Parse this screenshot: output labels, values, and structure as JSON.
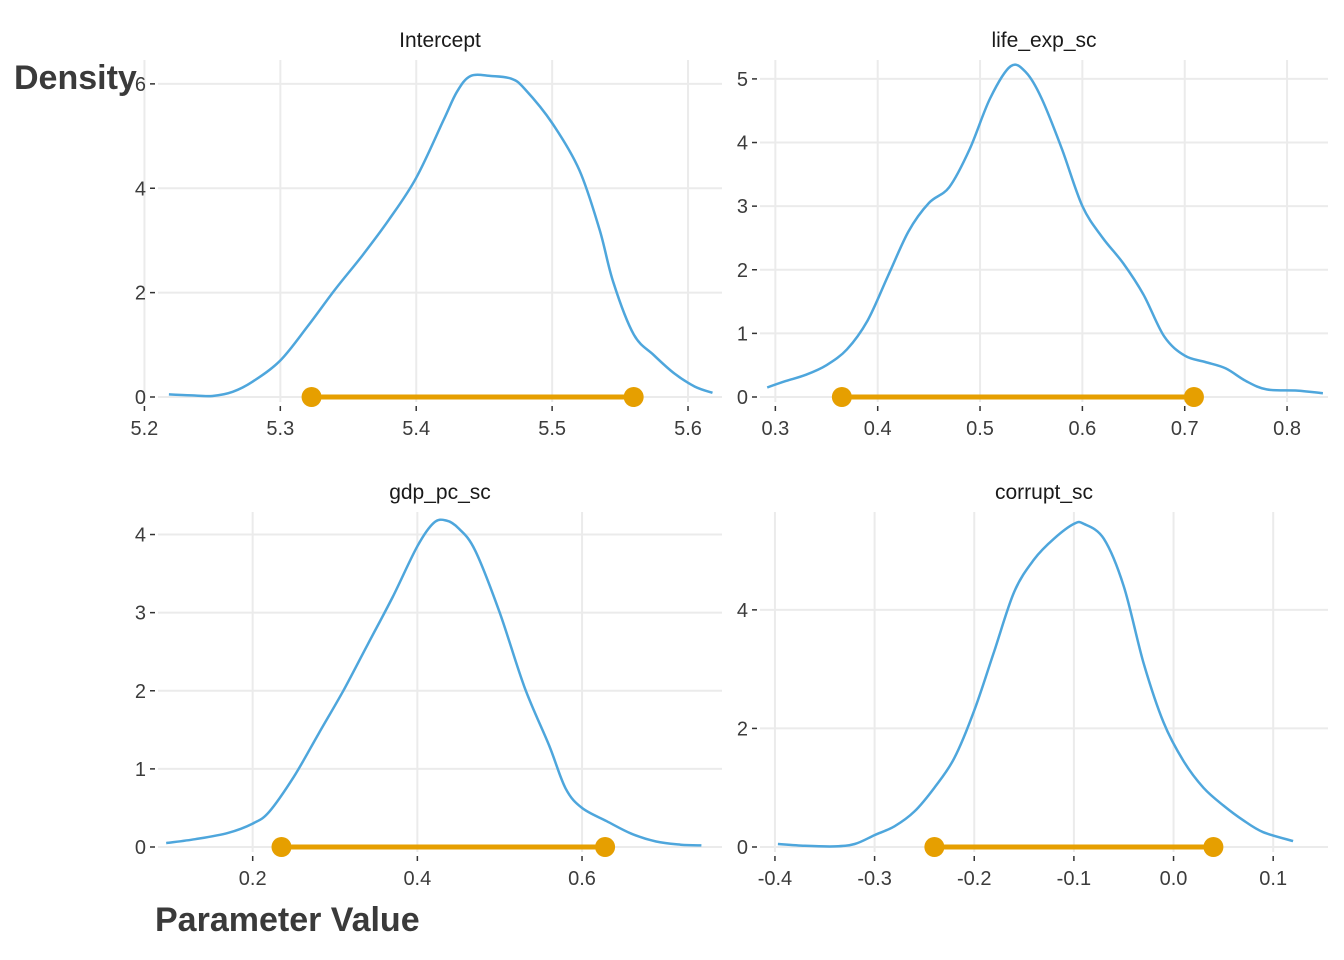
{
  "chart_data": [
    {
      "type": "line",
      "title": "Intercept",
      "xlim": [
        5.21,
        5.625
      ],
      "ylim": [
        0,
        6.4
      ],
      "x_ticks": [
        5.2,
        5.3,
        5.4,
        5.5,
        5.6
      ],
      "x_tick_labels": [
        "5.2",
        "5.3",
        "5.4",
        "5.5",
        "5.6"
      ],
      "y_ticks": [
        0,
        2,
        4,
        6
      ],
      "y_tick_labels": [
        "0",
        "2",
        "4",
        "6"
      ],
      "curve": {
        "x": [
          5.218,
          5.235,
          5.25,
          5.265,
          5.28,
          5.3,
          5.32,
          5.34,
          5.36,
          5.38,
          5.4,
          5.42,
          5.43,
          5.44,
          5.455,
          5.47,
          5.48,
          5.5,
          5.52,
          5.535,
          5.545,
          5.56,
          5.575,
          5.59,
          5.605,
          5.618
        ],
        "y": [
          0.05,
          0.03,
          0.02,
          0.1,
          0.3,
          0.7,
          1.35,
          2.05,
          2.7,
          3.4,
          4.2,
          5.3,
          5.85,
          6.15,
          6.15,
          6.1,
          5.9,
          5.25,
          4.35,
          3.2,
          2.2,
          1.2,
          0.8,
          0.45,
          0.2,
          0.08
        ]
      },
      "interval": [
        5.323,
        5.56
      ],
      "grid": true
    },
    {
      "type": "line",
      "title": "life_exp_sc",
      "xlim": [
        0.285,
        0.84
      ],
      "ylim": [
        0,
        5.25
      ],
      "x_ticks": [
        0.3,
        0.4,
        0.5,
        0.6,
        0.7,
        0.8
      ],
      "x_tick_labels": [
        "0.3",
        "0.4",
        "0.5",
        "0.6",
        "0.7",
        "0.8"
      ],
      "y_ticks": [
        0,
        1,
        2,
        3,
        4,
        5
      ],
      "y_tick_labels": [
        "0",
        "1",
        "2",
        "3",
        "4",
        "5"
      ],
      "curve": {
        "x": [
          0.292,
          0.31,
          0.33,
          0.35,
          0.37,
          0.39,
          0.41,
          0.43,
          0.45,
          0.47,
          0.49,
          0.51,
          0.53,
          0.545,
          0.56,
          0.58,
          0.6,
          0.62,
          0.64,
          0.66,
          0.68,
          0.7,
          0.72,
          0.74,
          0.76,
          0.78,
          0.81,
          0.835
        ],
        "y": [
          0.15,
          0.25,
          0.35,
          0.5,
          0.75,
          1.2,
          1.9,
          2.6,
          3.05,
          3.3,
          3.9,
          4.7,
          5.2,
          5.1,
          4.7,
          3.9,
          3.0,
          2.5,
          2.1,
          1.6,
          0.95,
          0.65,
          0.55,
          0.45,
          0.25,
          0.12,
          0.1,
          0.06
        ]
      },
      "interval": [
        0.365,
        0.709
      ],
      "grid": true
    },
    {
      "type": "line",
      "title": "gdp_pc_sc",
      "xlim": [
        0.085,
        0.77
      ],
      "ylim": [
        0,
        4.25
      ],
      "x_ticks": [
        0.2,
        0.4,
        0.6
      ],
      "x_tick_labels": [
        "0.2",
        "0.4",
        "0.6"
      ],
      "y_ticks": [
        0,
        1,
        2,
        3,
        4
      ],
      "y_tick_labels": [
        "0",
        "1",
        "2",
        "3",
        "4"
      ],
      "curve": {
        "x": [
          0.095,
          0.13,
          0.17,
          0.2,
          0.22,
          0.25,
          0.28,
          0.31,
          0.34,
          0.37,
          0.4,
          0.42,
          0.435,
          0.45,
          0.47,
          0.5,
          0.53,
          0.56,
          0.58,
          0.6,
          0.63,
          0.66,
          0.69,
          0.72,
          0.745
        ],
        "y": [
          0.05,
          0.1,
          0.18,
          0.3,
          0.45,
          0.9,
          1.45,
          2.0,
          2.6,
          3.2,
          3.85,
          4.15,
          4.18,
          4.08,
          3.8,
          3.0,
          2.05,
          1.3,
          0.75,
          0.5,
          0.33,
          0.17,
          0.07,
          0.03,
          0.02
        ]
      },
      "interval": [
        0.235,
        0.628
      ],
      "grid": true
    },
    {
      "type": "line",
      "title": "corrupt_sc",
      "xlim": [
        -0.415,
        0.155
      ],
      "ylim": [
        0,
        5.6
      ],
      "x_ticks": [
        -0.4,
        -0.3,
        -0.2,
        -0.1,
        0.0,
        0.1
      ],
      "x_tick_labels": [
        "-0.4",
        "-0.3",
        "-0.2",
        "-0.1",
        "0.0",
        "0.1"
      ],
      "y_ticks": [
        0,
        2,
        4
      ],
      "y_tick_labels": [
        "0",
        "2",
        "4"
      ],
      "curve": {
        "x": [
          -0.397,
          -0.37,
          -0.34,
          -0.32,
          -0.3,
          -0.28,
          -0.26,
          -0.24,
          -0.22,
          -0.2,
          -0.18,
          -0.16,
          -0.14,
          -0.12,
          -0.1,
          -0.09,
          -0.07,
          -0.05,
          -0.03,
          -0.01,
          0.01,
          0.03,
          0.05,
          0.07,
          0.09,
          0.12
        ],
        "y": [
          0.05,
          0.02,
          0.01,
          0.05,
          0.2,
          0.35,
          0.6,
          1.0,
          1.5,
          2.3,
          3.3,
          4.3,
          4.85,
          5.2,
          5.45,
          5.45,
          5.2,
          4.4,
          3.1,
          2.1,
          1.45,
          1.0,
          0.7,
          0.45,
          0.25,
          0.1
        ]
      },
      "interval": [
        -0.24,
        0.04
      ],
      "grid": true
    }
  ],
  "axis_labels": {
    "y": "Density",
    "x": "Parameter Value"
  },
  "colors": {
    "density_line": "#4ea6dc",
    "interval": "#e69f00",
    "grid": "#ebebeb"
  }
}
